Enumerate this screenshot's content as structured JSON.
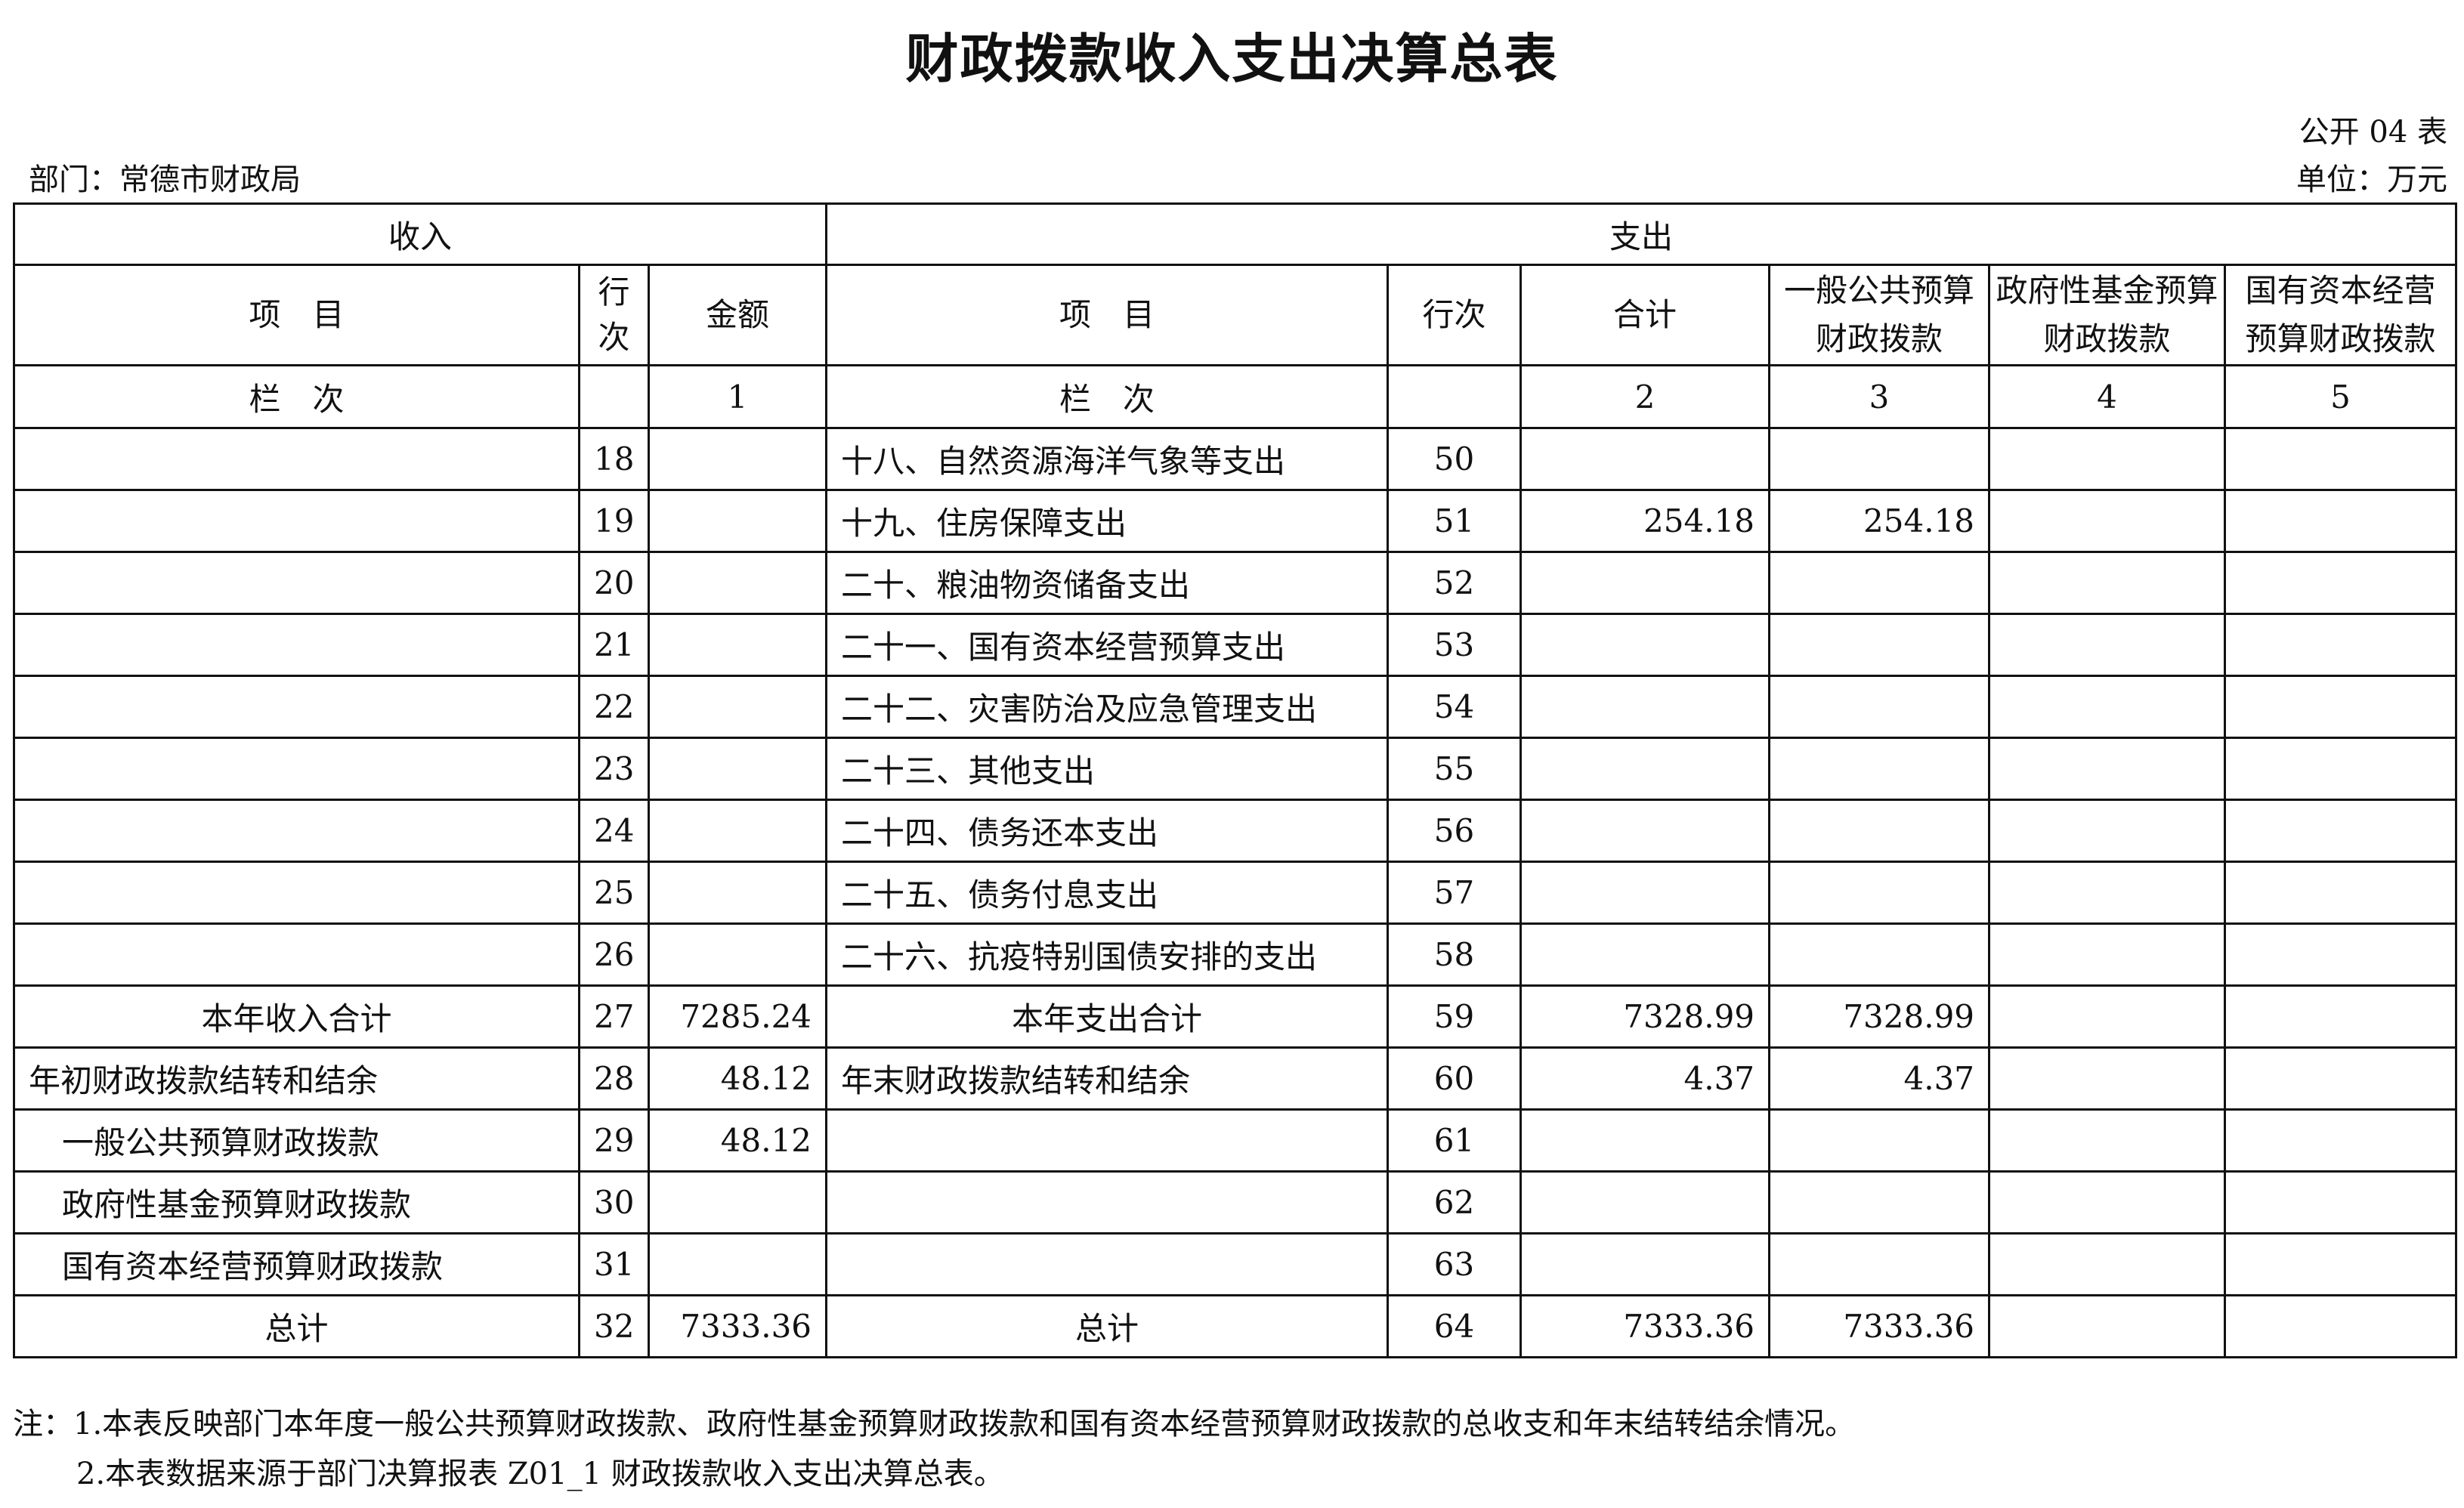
{
  "title": "财政拨款收入支出决算总表",
  "form_no": "公开 04 表",
  "department": "部门：常德市财政局",
  "unit": "单位：万元",
  "header": {
    "income": "收入",
    "expense": "支出",
    "item": "项　目",
    "line_no": "行次",
    "line_no_income": "行\n次",
    "amount": "金额",
    "total": "合计",
    "general": "一般公共预算财政拨款",
    "gov_fund": "政府性基金预算财政拨款",
    "state_capital": "国有资本经营预算财政拨款",
    "col_label": "栏　次",
    "col1": "1",
    "col2": "2",
    "col3": "3",
    "col4": "4",
    "col5": "5"
  },
  "rows": [
    {
      "in_item": "",
      "in_no": "18",
      "in_amt": "",
      "ex_item": "十八、自然资源海洋气象等支出",
      "ex_no": "50",
      "total": "",
      "general": "",
      "fund": "",
      "capital": ""
    },
    {
      "in_item": "",
      "in_no": "19",
      "in_amt": "",
      "ex_item": "十九、住房保障支出",
      "ex_no": "51",
      "total": "254.18",
      "general": "254.18",
      "fund": "",
      "capital": ""
    },
    {
      "in_item": "",
      "in_no": "20",
      "in_amt": "",
      "ex_item": "二十、粮油物资储备支出",
      "ex_no": "52",
      "total": "",
      "general": "",
      "fund": "",
      "capital": ""
    },
    {
      "in_item": "",
      "in_no": "21",
      "in_amt": "",
      "ex_item": "二十一、国有资本经营预算支出",
      "ex_no": "53",
      "total": "",
      "general": "",
      "fund": "",
      "capital": ""
    },
    {
      "in_item": "",
      "in_no": "22",
      "in_amt": "",
      "ex_item": "二十二、灾害防治及应急管理支出",
      "ex_no": "54",
      "total": "",
      "general": "",
      "fund": "",
      "capital": ""
    },
    {
      "in_item": "",
      "in_no": "23",
      "in_amt": "",
      "ex_item": "二十三、其他支出",
      "ex_no": "55",
      "total": "",
      "general": "",
      "fund": "",
      "capital": ""
    },
    {
      "in_item": "",
      "in_no": "24",
      "in_amt": "",
      "ex_item": "二十四、债务还本支出",
      "ex_no": "56",
      "total": "",
      "general": "",
      "fund": "",
      "capital": ""
    },
    {
      "in_item": "",
      "in_no": "25",
      "in_amt": "",
      "ex_item": "二十五、债务付息支出",
      "ex_no": "57",
      "total": "",
      "general": "",
      "fund": "",
      "capital": ""
    },
    {
      "in_item": "",
      "in_no": "26",
      "in_amt": "",
      "ex_item": "二十六、抗疫特别国债安排的支出",
      "ex_no": "58",
      "total": "",
      "general": "",
      "fund": "",
      "capital": ""
    },
    {
      "in_item": "本年收入合计",
      "in_no": "27",
      "in_amt": "7285.24",
      "ex_item": "本年支出合计",
      "ex_no": "59",
      "total": "7328.99",
      "general": "7328.99",
      "fund": "",
      "capital": ""
    },
    {
      "in_item": "年初财政拨款结转和结余",
      "in_no": "28",
      "in_amt": "48.12",
      "ex_item": "年末财政拨款结转和结余",
      "ex_no": "60",
      "total": "4.37",
      "general": "4.37",
      "fund": "",
      "capital": ""
    },
    {
      "in_item": "一般公共预算财政拨款",
      "in_no": "29",
      "in_amt": "48.12",
      "ex_item": "",
      "ex_no": "61",
      "total": "",
      "general": "",
      "fund": "",
      "capital": ""
    },
    {
      "in_item": "政府性基金预算财政拨款",
      "in_no": "30",
      "in_amt": "",
      "ex_item": "",
      "ex_no": "62",
      "total": "",
      "general": "",
      "fund": "",
      "capital": ""
    },
    {
      "in_item": "国有资本经营预算财政拨款",
      "in_no": "31",
      "in_amt": "",
      "ex_item": "",
      "ex_no": "63",
      "total": "",
      "general": "",
      "fund": "",
      "capital": ""
    },
    {
      "in_item": "总计",
      "in_no": "32",
      "in_amt": "7333.36",
      "ex_item": "总计",
      "ex_no": "64",
      "total": "7333.36",
      "general": "7333.36",
      "fund": "",
      "capital": ""
    }
  ],
  "notes": [
    "注：1.本表反映部门本年度一般公共预算财政拨款、政府性基金预算财政拨款和国有资本经营预算财政拨款的总收支和年末结转结余情况。",
    "2.本表数据来源于部门决算报表 Z01_1 财政拨款收入支出决算总表。"
  ]
}
